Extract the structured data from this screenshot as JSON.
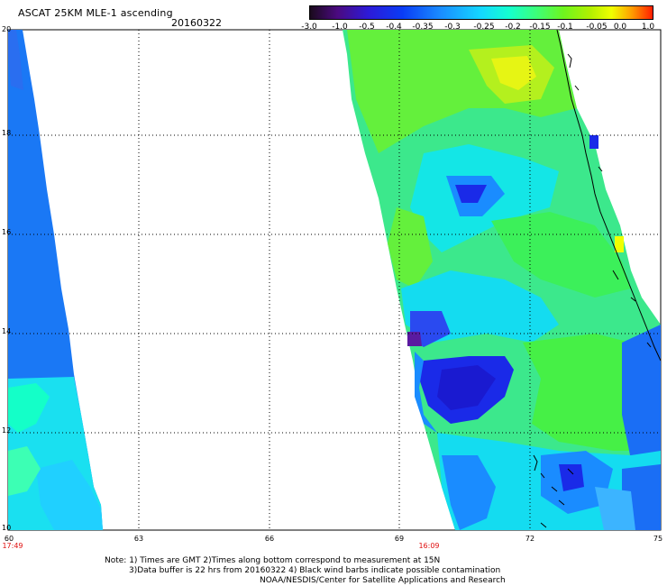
{
  "header": {
    "title": "ASCAT 25KM MLE-1 ascending",
    "date": "20160322"
  },
  "colorbar": {
    "labels": [
      "-3.0",
      "-1.0",
      "-0.5",
      "-0.4",
      "-0.35",
      "-0.3",
      "-0.25",
      "-0.2",
      "-0.15",
      "-0.1",
      "-0.05",
      "0.0",
      "1.0"
    ]
  },
  "axes": {
    "x_ticks": [
      "60",
      "63",
      "66",
      "69",
      "72",
      "75"
    ],
    "y_ticks": [
      "20",
      "18",
      "16",
      "14",
      "12",
      "10"
    ]
  },
  "times": {
    "left": "17:49",
    "mid": "16:09"
  },
  "notes": {
    "line1": "Note: 1) Times are GMT 2)Times along bottom correspond to measurement at 15N",
    "line2": "3)Data buffer is 22 hrs from 20160322 4) Black wind barbs indicate possible contamination",
    "line3": "NOAA/NESDIS/Center for Satellite Applications and Research"
  },
  "colors": {
    "deep_blue": "#1a2ae8",
    "blue": "#1a8cff",
    "cyan": "#14f0f0",
    "green": "#50f03c",
    "yellow_green": "#b4f000",
    "yellow": "#f0ff00",
    "purple": "#5a1aa0"
  }
}
